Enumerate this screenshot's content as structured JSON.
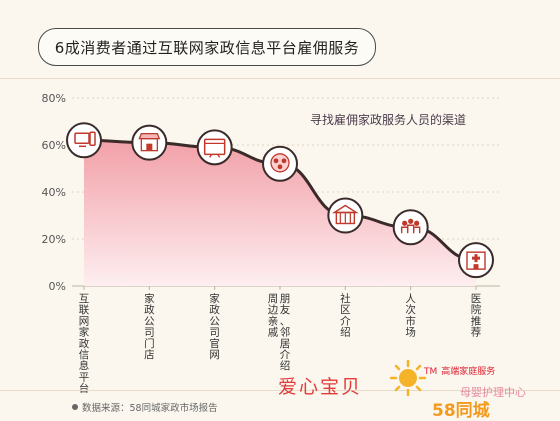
{
  "title": "6成消费者通过互联网家政信息平台雇佣服务",
  "chart_data": {
    "type": "area",
    "title": "寻找雇佣家政服务人员的渠道",
    "categories": [
      "互联网家政信息平台",
      "家政公司门店",
      "家政公司官网",
      "周边亲戚朋友、邻居介绍",
      "社区介绍",
      "人次市场",
      "医院推荐"
    ],
    "category_lines": [
      [
        "互联网家政信息平台"
      ],
      [
        "家政公司门店"
      ],
      [
        "家政公司官网"
      ],
      [
        "周边亲戚",
        "朋友、邻居介绍"
      ],
      [
        "社区介绍"
      ],
      [
        "人次市场"
      ],
      [
        "医院推荐"
      ]
    ],
    "values": [
      62,
      61,
      59,
      52,
      30,
      25,
      11
    ],
    "ylim": [
      0,
      80
    ],
    "yticks": [
      "0%",
      "20%",
      "40%",
      "60%",
      "80%"
    ],
    "grid": true,
    "icons": [
      "computer-icon",
      "storefront-icon",
      "website-icon",
      "people-icon",
      "community-building-icon",
      "crowd-icon",
      "hospital-icon"
    ]
  },
  "source": "数据来源：58同城家政市场报告",
  "watermark": {
    "brand": "爱心宝贝",
    "tm": "TM",
    "service": "高端家庭服务",
    "sub": "母婴护理中心",
    "site_a": "58",
    "site_b": "同城"
  },
  "colors": {
    "line": "#3a2a2a",
    "area_top": "#f2a0a8",
    "area_bottom": "#fdeef0",
    "accent": "#e33b3b"
  }
}
